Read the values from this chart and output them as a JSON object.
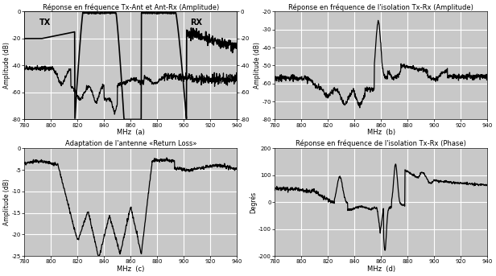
{
  "title_a": "Réponse en fréquence Tx-Ant et Ant-Rx (Amplitude)",
  "title_b": "Réponse en fréquence de l'isolation Tx-Rx (Amplitude)",
  "title_c": "Adaptation de l'antenne «Return Loss»",
  "title_d": "Réponse en fréquence de l'isolation Tx-Rx (Phase)",
  "xlabel_a": "MHz  (a)",
  "xlabel_b": "MHz  (b)",
  "xlabel_c": "MHz  (c)",
  "xlabel_d": "MHz  (d)",
  "ylabel_amp": "Amplitude (dB)",
  "ylabel_deg": "Degrés",
  "xmin": 780,
  "xmax": 940,
  "xticks": [
    780,
    800,
    820,
    840,
    860,
    880,
    900,
    920,
    940
  ],
  "ylim_a": [
    -80,
    0
  ],
  "yticks_a": [
    0,
    -20,
    -40,
    -60,
    -80
  ],
  "ylim_b": [
    -80,
    -20
  ],
  "yticks_b": [
    -20,
    -30,
    -40,
    -50,
    -60,
    -70,
    -80
  ],
  "ylim_c": [
    -25,
    0
  ],
  "yticks_c": [
    0,
    -5,
    -10,
    -15,
    -20,
    -25
  ],
  "ylim_d": [
    -200,
    200
  ],
  "yticks_d": [
    200,
    100,
    0,
    -100,
    -200
  ],
  "bg_color": "#c8c8c8",
  "line_color": "#000000",
  "grid_color": "#ffffff",
  "label_tx": "TX",
  "label_rx": "RX"
}
